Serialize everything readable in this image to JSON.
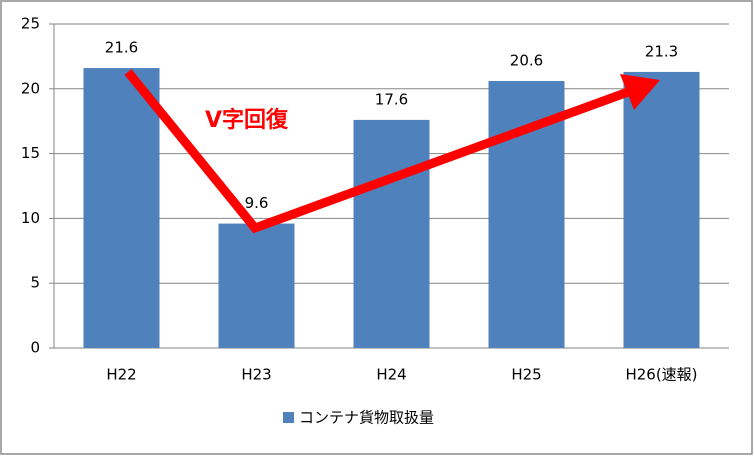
{
  "chart_data": {
    "type": "bar",
    "categories": [
      "H22",
      "H23",
      "H24",
      "H25",
      "H26(速報)"
    ],
    "series": [
      {
        "name": "コンテナ貨物取扱量",
        "color": "#4f81bd",
        "values": [
          21.6,
          9.6,
          17.6,
          20.6,
          21.3
        ]
      }
    ],
    "ylim": [
      0,
      25
    ],
    "yticks": [
      0,
      5,
      10,
      15,
      20,
      25
    ],
    "grid": true,
    "annotation": "V字回復",
    "legend": "bottom"
  }
}
